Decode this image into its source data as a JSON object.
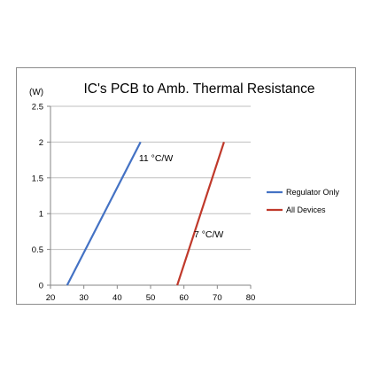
{
  "chart_data": {
    "type": "line",
    "title": "IC's PCB to Amb. Thermal Resistance",
    "y_unit_label": "(W)",
    "xlim": [
      20,
      80
    ],
    "ylim": [
      0,
      2.5
    ],
    "x_ticks": [
      "20",
      "30",
      "40",
      "50",
      "60",
      "70",
      "80"
    ],
    "y_ticks": [
      "0",
      "0.5",
      "1",
      "1.5",
      "2",
      "2.5"
    ],
    "grid": true,
    "legend_position": "right",
    "series": [
      {
        "name": "Regulator Only",
        "color": "#4472c4",
        "x": [
          25,
          47
        ],
        "y": [
          0,
          2
        ]
      },
      {
        "name": "All Devices",
        "color": "#c0392b",
        "x": [
          58,
          72
        ],
        "y": [
          0,
          2
        ]
      }
    ],
    "annotations": [
      {
        "text": "11 °C/W",
        "x": 46.5,
        "y": 1.73
      },
      {
        "text": "7 °C/W",
        "x": 63,
        "y": 0.67
      }
    ]
  }
}
